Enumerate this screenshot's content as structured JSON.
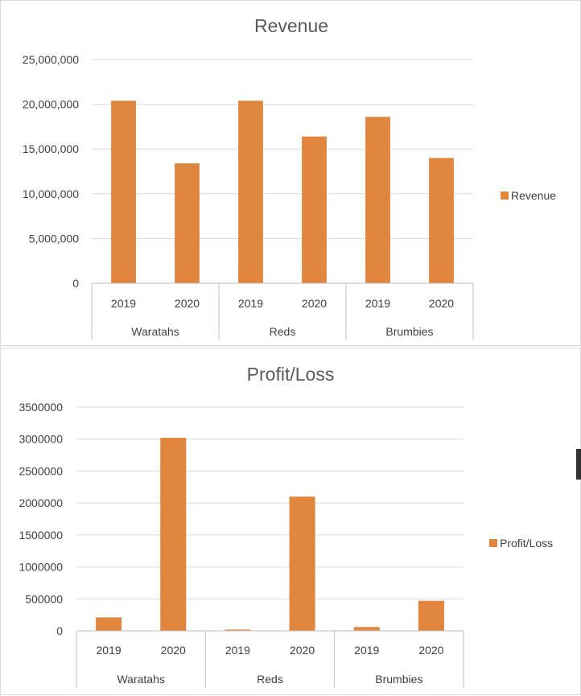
{
  "colors": {
    "bar": "#E0863F",
    "grid": "#d9d9d9",
    "axis": "#bfbfbf",
    "text": "#404040",
    "title": "#595959"
  },
  "chart_data": [
    {
      "type": "bar",
      "title": "Revenue",
      "ylim": [
        0,
        25000000
      ],
      "yticks": [
        0,
        5000000,
        10000000,
        15000000,
        20000000,
        25000000
      ],
      "ytick_labels": [
        "0",
        "5,000,000",
        "10,000,000",
        "15,000,000",
        "20,000,000",
        "25,000,000"
      ],
      "grid": true,
      "legend_position": "right",
      "groups": [
        {
          "name": "Waratahs",
          "categories": [
            "2019",
            "2020"
          ]
        },
        {
          "name": "Reds",
          "categories": [
            "2019",
            "2020"
          ]
        },
        {
          "name": "Brumbies",
          "categories": [
            "2019",
            "2020"
          ]
        }
      ],
      "series": [
        {
          "name": "Revenue",
          "values": [
            20400000,
            13400000,
            20400000,
            16400000,
            18600000,
            14000000
          ]
        }
      ]
    },
    {
      "type": "bar",
      "title": "Profit/Loss",
      "ylim": [
        0,
        3500000
      ],
      "yticks": [
        0,
        500000,
        1000000,
        1500000,
        2000000,
        2500000,
        3000000,
        3500000
      ],
      "ytick_labels": [
        "0",
        "500000",
        "1000000",
        "1500000",
        "2000000",
        "2500000",
        "3000000",
        "3500000"
      ],
      "grid": true,
      "legend_position": "right",
      "groups": [
        {
          "name": "Waratahs",
          "categories": [
            "2019",
            "2020"
          ]
        },
        {
          "name": "Reds",
          "categories": [
            "2019",
            "2020"
          ]
        },
        {
          "name": "Brumbies",
          "categories": [
            "2019",
            "2020"
          ]
        }
      ],
      "series": [
        {
          "name": "Profit/Loss",
          "values": [
            210000,
            3020000,
            20000,
            2100000,
            60000,
            470000
          ]
        }
      ]
    }
  ]
}
